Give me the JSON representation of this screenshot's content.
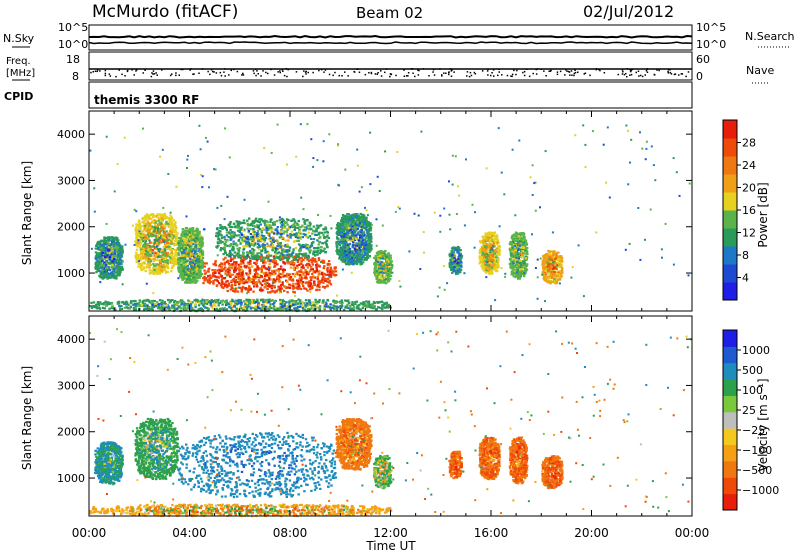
{
  "header": {
    "station": "McMurdo (fitACF)",
    "beam": "Beam 02",
    "date": "02/Jul/2012"
  },
  "strip_labels": {
    "left_top": "N.Sky",
    "left_mid_line1": "Freq.",
    "left_mid_line2": "[MHz]",
    "left_bottom": "CPID",
    "right_top": "N.Search",
    "right_mid": "Nave"
  },
  "strips": {
    "nsky_ticks": [
      "10^5",
      "10^0"
    ],
    "freq_ticks": [
      "18",
      "8"
    ],
    "nave_ticks": [
      "60",
      "0"
    ],
    "nsearch_ticks": [
      "10^5",
      "10^0"
    ],
    "cpid_text": "themis 3300 RF"
  },
  "colors": {
    "power_scale": [
      "#1e1ee6",
      "#1e4ad2",
      "#1e78c8",
      "#2a9a5a",
      "#5ab44a",
      "#e6d020",
      "#f0a018",
      "#f07810",
      "#f04a0a",
      "#e61e0a"
    ],
    "velocity_scale": [
      "#1e1ee6",
      "#1e5ad0",
      "#1e8cbc",
      "#2ca04a",
      "#7ac83c",
      "#bebebe",
      "#f5c81e",
      "#f5a014",
      "#f07810",
      "#f04a0a",
      "#e61e0a"
    ]
  },
  "chart_data": [
    {
      "type": "heatmap",
      "title": "",
      "xlabel": "Time UT",
      "ylabel": "Slant Range [km]",
      "x_range": [
        "00:00",
        "24:00"
      ],
      "x_ticks": [
        "00:00",
        "04:00",
        "08:00",
        "12:00",
        "16:00",
        "20:00",
        "00:00"
      ],
      "ylim": [
        180,
        4500
      ],
      "y_ticks": [
        1000,
        2000,
        3000,
        4000
      ],
      "colorbar": {
        "label": "Power [dB]",
        "range": [
          0,
          32
        ],
        "ticks": [
          "4",
          "8",
          "12",
          "16",
          "20",
          "24",
          "28"
        ]
      },
      "regions": [
        {
          "t_start": 0.2,
          "t_end": 1.3,
          "r_min": 900,
          "r_max": 1800,
          "value_db": 10
        },
        {
          "t_start": 1.8,
          "t_end": 3.5,
          "r_min": 1000,
          "r_max": 2300,
          "value_db": 18
        },
        {
          "t_start": 3.5,
          "t_end": 4.5,
          "r_min": 800,
          "r_max": 2000,
          "value_db": 14
        },
        {
          "t_start": 4.5,
          "t_end": 9.8,
          "r_min": 600,
          "r_max": 1400,
          "value_db": 28
        },
        {
          "t_start": 5.0,
          "t_end": 9.5,
          "r_min": 1300,
          "r_max": 2200,
          "value_db": 12
        },
        {
          "t_start": 9.8,
          "t_end": 11.2,
          "r_min": 1200,
          "r_max": 2300,
          "value_db": 10
        },
        {
          "t_start": 11.3,
          "t_end": 12.0,
          "r_min": 800,
          "r_max": 1500,
          "value_db": 14
        },
        {
          "t_start": 14.3,
          "t_end": 14.8,
          "r_min": 1000,
          "r_max": 1600,
          "value_db": 10
        },
        {
          "t_start": 15.5,
          "t_end": 16.3,
          "r_min": 1000,
          "r_max": 1900,
          "value_db": 18
        },
        {
          "t_start": 16.7,
          "t_end": 17.4,
          "r_min": 900,
          "r_max": 1900,
          "value_db": 14
        },
        {
          "t_start": 18.0,
          "t_end": 18.8,
          "r_min": 800,
          "r_max": 1500,
          "value_db": 20
        },
        {
          "t_start": 0.0,
          "t_end": 12.0,
          "r_min": 200,
          "r_max": 450,
          "value_db": 12
        }
      ]
    },
    {
      "type": "heatmap",
      "title": "",
      "xlabel": "Time UT",
      "ylabel": "Slant Range [km]",
      "x_range": [
        "00:00",
        "24:00"
      ],
      "x_ticks": [
        "00:00",
        "04:00",
        "08:00",
        "12:00",
        "16:00",
        "20:00",
        "00:00"
      ],
      "ylim": [
        180,
        4500
      ],
      "y_ticks": [
        1000,
        2000,
        3000,
        4000
      ],
      "colorbar": {
        "label": "Velocity [m s⁻¹]",
        "ticks": [
          "1000",
          "500",
          "100",
          "25",
          "−25",
          "−100",
          "−500",
          "−1000"
        ]
      },
      "regions": [
        {
          "t_start": 0.2,
          "t_end": 1.3,
          "r_min": 900,
          "r_max": 1800,
          "value_ms": 300
        },
        {
          "t_start": 1.8,
          "t_end": 3.5,
          "r_min": 1000,
          "r_max": 2300,
          "value_ms": 200
        },
        {
          "t_start": 3.5,
          "t_end": 9.8,
          "r_min": 600,
          "r_max": 2000,
          "value_ms": 600
        },
        {
          "t_start": 9.8,
          "t_end": 11.2,
          "r_min": 1200,
          "r_max": 2300,
          "value_ms": -200
        },
        {
          "t_start": 11.3,
          "t_end": 12.0,
          "r_min": 800,
          "r_max": 1500,
          "value_ms": 100
        },
        {
          "t_start": 14.3,
          "t_end": 14.8,
          "r_min": 1000,
          "r_max": 1600,
          "value_ms": -300
        },
        {
          "t_start": 15.5,
          "t_end": 16.3,
          "r_min": 1000,
          "r_max": 1900,
          "value_ms": -300
        },
        {
          "t_start": 16.7,
          "t_end": 17.4,
          "r_min": 900,
          "r_max": 1900,
          "value_ms": -300
        },
        {
          "t_start": 18.0,
          "t_end": 18.8,
          "r_min": 800,
          "r_max": 1500,
          "value_ms": -300
        },
        {
          "t_start": 0.0,
          "t_end": 12.0,
          "r_min": 200,
          "r_max": 450,
          "value_ms": -50
        }
      ]
    }
  ]
}
